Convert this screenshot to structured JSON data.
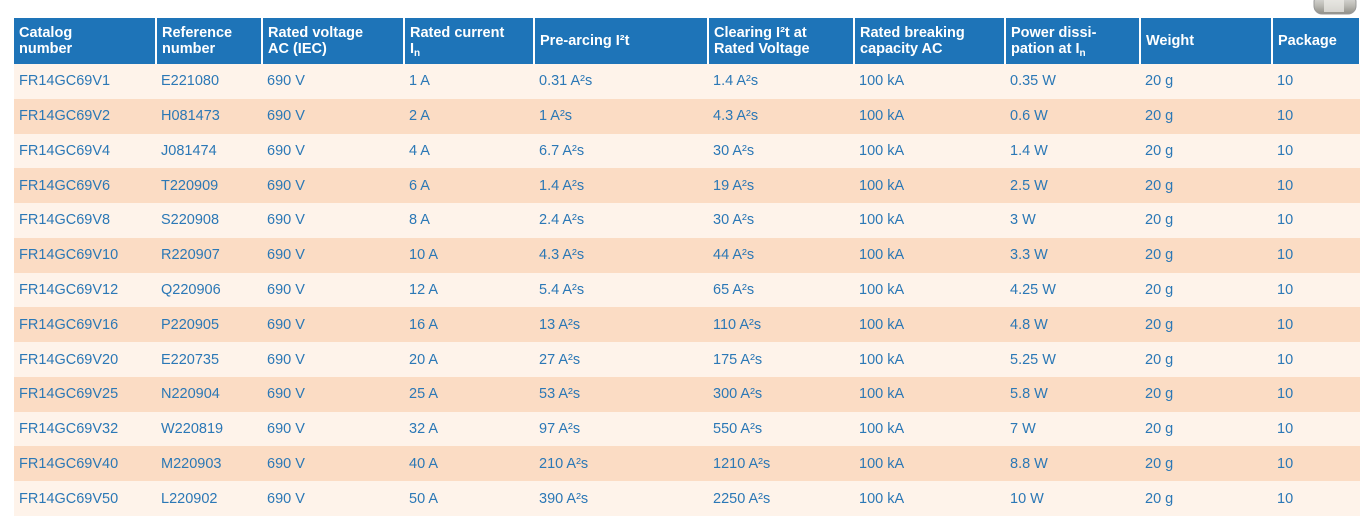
{
  "table": {
    "header": [
      {
        "lines": [
          "Catalog",
          "number"
        ]
      },
      {
        "lines": [
          "Reference",
          "number"
        ]
      },
      {
        "lines": [
          "Rated voltage",
          "AC (IEC)"
        ]
      },
      {
        "lines": [
          "Rated current",
          "I"
        ],
        "sub": "n"
      },
      {
        "lines": [
          "Pre-arcing I²t"
        ]
      },
      {
        "lines": [
          "Clearing I²t at",
          "Rated Voltage"
        ]
      },
      {
        "lines": [
          "Rated breaking",
          "capacity AC"
        ]
      },
      {
        "lines": [
          "Power dissi-",
          "pation at I"
        ],
        "sub": "n"
      },
      {
        "lines": [
          "Weight"
        ]
      },
      {
        "lines": [
          "Package"
        ]
      }
    ],
    "rows": [
      [
        "FR14GC69V1",
        "E221080",
        "690 V",
        "1 A",
        "0.31 A²s",
        "1.4 A²s",
        "100 kA",
        "0.35 W",
        "20 g",
        "10"
      ],
      [
        "FR14GC69V2",
        "H081473",
        "690 V",
        "2 A",
        "1 A²s",
        "4.3 A²s",
        "100 kA",
        "0.6 W",
        "20 g",
        "10"
      ],
      [
        "FR14GC69V4",
        "J081474",
        "690 V",
        "4 A",
        "6.7 A²s",
        "30 A²s",
        "100 kA",
        "1.4 W",
        "20 g",
        "10"
      ],
      [
        "FR14GC69V6",
        "T220909",
        "690 V",
        "6 A",
        "1.4 A²s",
        "19 A²s",
        "100 kA",
        "2.5 W",
        "20 g",
        "10"
      ],
      [
        "FR14GC69V8",
        "S220908",
        "690 V",
        "8 A",
        "2.4 A²s",
        "30 A²s",
        "100 kA",
        "3 W",
        "20 g",
        "10"
      ],
      [
        "FR14GC69V10",
        "R220907",
        "690 V",
        "10 A",
        "4.3 A²s",
        "44 A²s",
        "100 kA",
        "3.3 W",
        "20 g",
        "10"
      ],
      [
        "FR14GC69V12",
        "Q220906",
        "690 V",
        "12 A",
        "5.4 A²s",
        "65 A²s",
        "100 kA",
        "4.25 W",
        "20 g",
        "10"
      ],
      [
        "FR14GC69V16",
        "P220905",
        "690 V",
        "16 A",
        "13 A²s",
        "110 A²s",
        "100 kA",
        "4.8 W",
        "20 g",
        "10"
      ],
      [
        "FR14GC69V20",
        "E220735",
        "690 V",
        "20 A",
        "27 A²s",
        "175 A²s",
        "100 kA",
        "5.25 W",
        "20 g",
        "10"
      ],
      [
        "FR14GC69V25",
        "N220904",
        "690 V",
        "25 A",
        "53 A²s",
        "300 A²s",
        "100 kA",
        "5.8 W",
        "20 g",
        "10"
      ],
      [
        "FR14GC69V32",
        "W220819",
        "690 V",
        "32 A",
        "97 A²s",
        "550 A²s",
        "100 kA",
        "7 W",
        "20 g",
        "10"
      ],
      [
        "FR14GC69V40",
        "M220903",
        "690 V",
        "40 A",
        "210 A²s",
        "1210 A²s",
        "100 kA",
        "8.8 W",
        "20 g",
        "10"
      ],
      [
        "FR14GC69V50",
        "L220902",
        "690 V",
        "50 A",
        "390 A²s",
        "2250 A²s",
        "100 kA",
        "10 W",
        "20 g",
        "10"
      ]
    ]
  }
}
